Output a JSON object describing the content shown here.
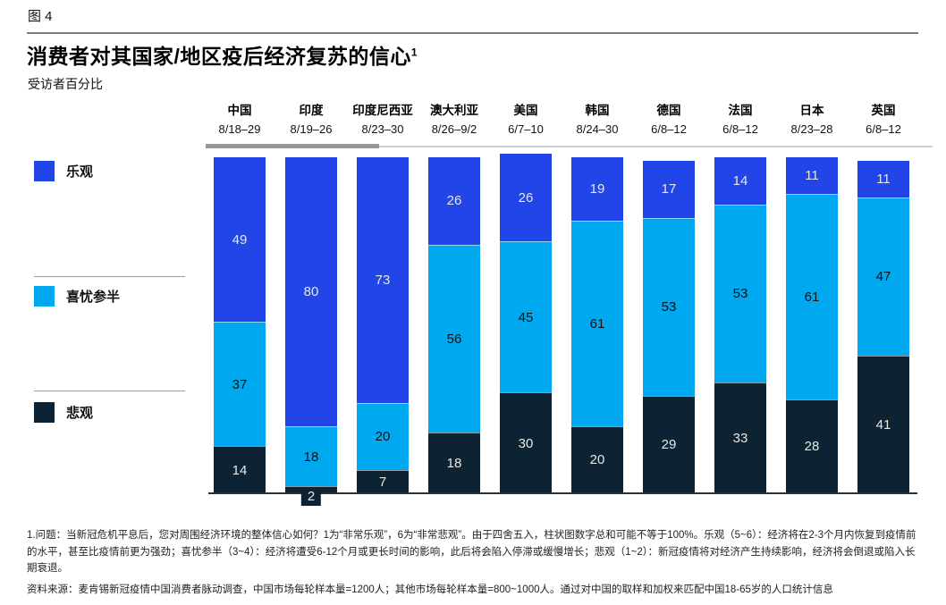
{
  "figure": {
    "label": "图 4",
    "title": "消费者对其国家/地区疫后经济复苏的信心",
    "title_superscript": "1",
    "subtitle": "受访者百分比"
  },
  "chart_data": {
    "type": "bar",
    "stacked": true,
    "unit": "%",
    "title": "消费者对其国家/地区疫后经济复苏的信心",
    "subtitle": "受访者百分比",
    "ylim": [
      0,
      100
    ],
    "gridlines": false,
    "legend_position": "left",
    "categories": [
      {
        "name": "中国",
        "dates": "8/18–29"
      },
      {
        "name": "印度",
        "dates": "8/19–26"
      },
      {
        "name": "印度尼西亚",
        "dates": "8/23–30"
      },
      {
        "name": "澳大利亚",
        "dates": "8/26–9/2"
      },
      {
        "name": "美国",
        "dates": "6/7–10"
      },
      {
        "name": "韩国",
        "dates": "8/24–30"
      },
      {
        "name": "德国",
        "dates": "6/8–12"
      },
      {
        "name": "法国",
        "dates": "6/8–12"
      },
      {
        "name": "日本",
        "dates": "8/23–28"
      },
      {
        "name": "英国",
        "dates": "6/8–12"
      }
    ],
    "series": [
      {
        "name": "乐观",
        "color": "#2145e6",
        "label_color": "#e8e8e6",
        "values": [
          49,
          80,
          73,
          26,
          26,
          19,
          17,
          14,
          11,
          11
        ]
      },
      {
        "name": "喜忧参半",
        "color": "#00a8f0",
        "label_color": "#101010",
        "values": [
          37,
          18,
          20,
          56,
          45,
          61,
          53,
          53,
          61,
          47
        ]
      },
      {
        "name": "悲观",
        "color": "#0d2232",
        "label_color": "#eae8df",
        "values": [
          14,
          2,
          7,
          18,
          30,
          20,
          29,
          33,
          28,
          41
        ]
      }
    ]
  },
  "footnotes": {
    "note1": "1.问题：当新冠危机平息后，您对周围经济环境的整体信心如何？1为“非常乐观”，6为“非常悲观”。由于四舍五入，柱状图数字总和可能不等于100%。乐观（5~6）：经济将在2-3个月内恢复到疫情前的水平，甚至比疫情前更为强劲；喜忧参半（3~4）：经济将遭受6-12个月或更长时间的影响，此后将会陷入停滞或缓慢增长；悲观（1~2）：新冠疫情将对经济产生持续影响，经济将会倒退或陷入长期衰退。",
    "source": "资料来源：麦肯锡新冠疫情中国消费者脉动调查，中国市场每轮样本量=1200人；其他市场每轮样本量=800~1000人。通过对中国的取样和加权来匹配中国18-65岁的人口统计信息"
  }
}
